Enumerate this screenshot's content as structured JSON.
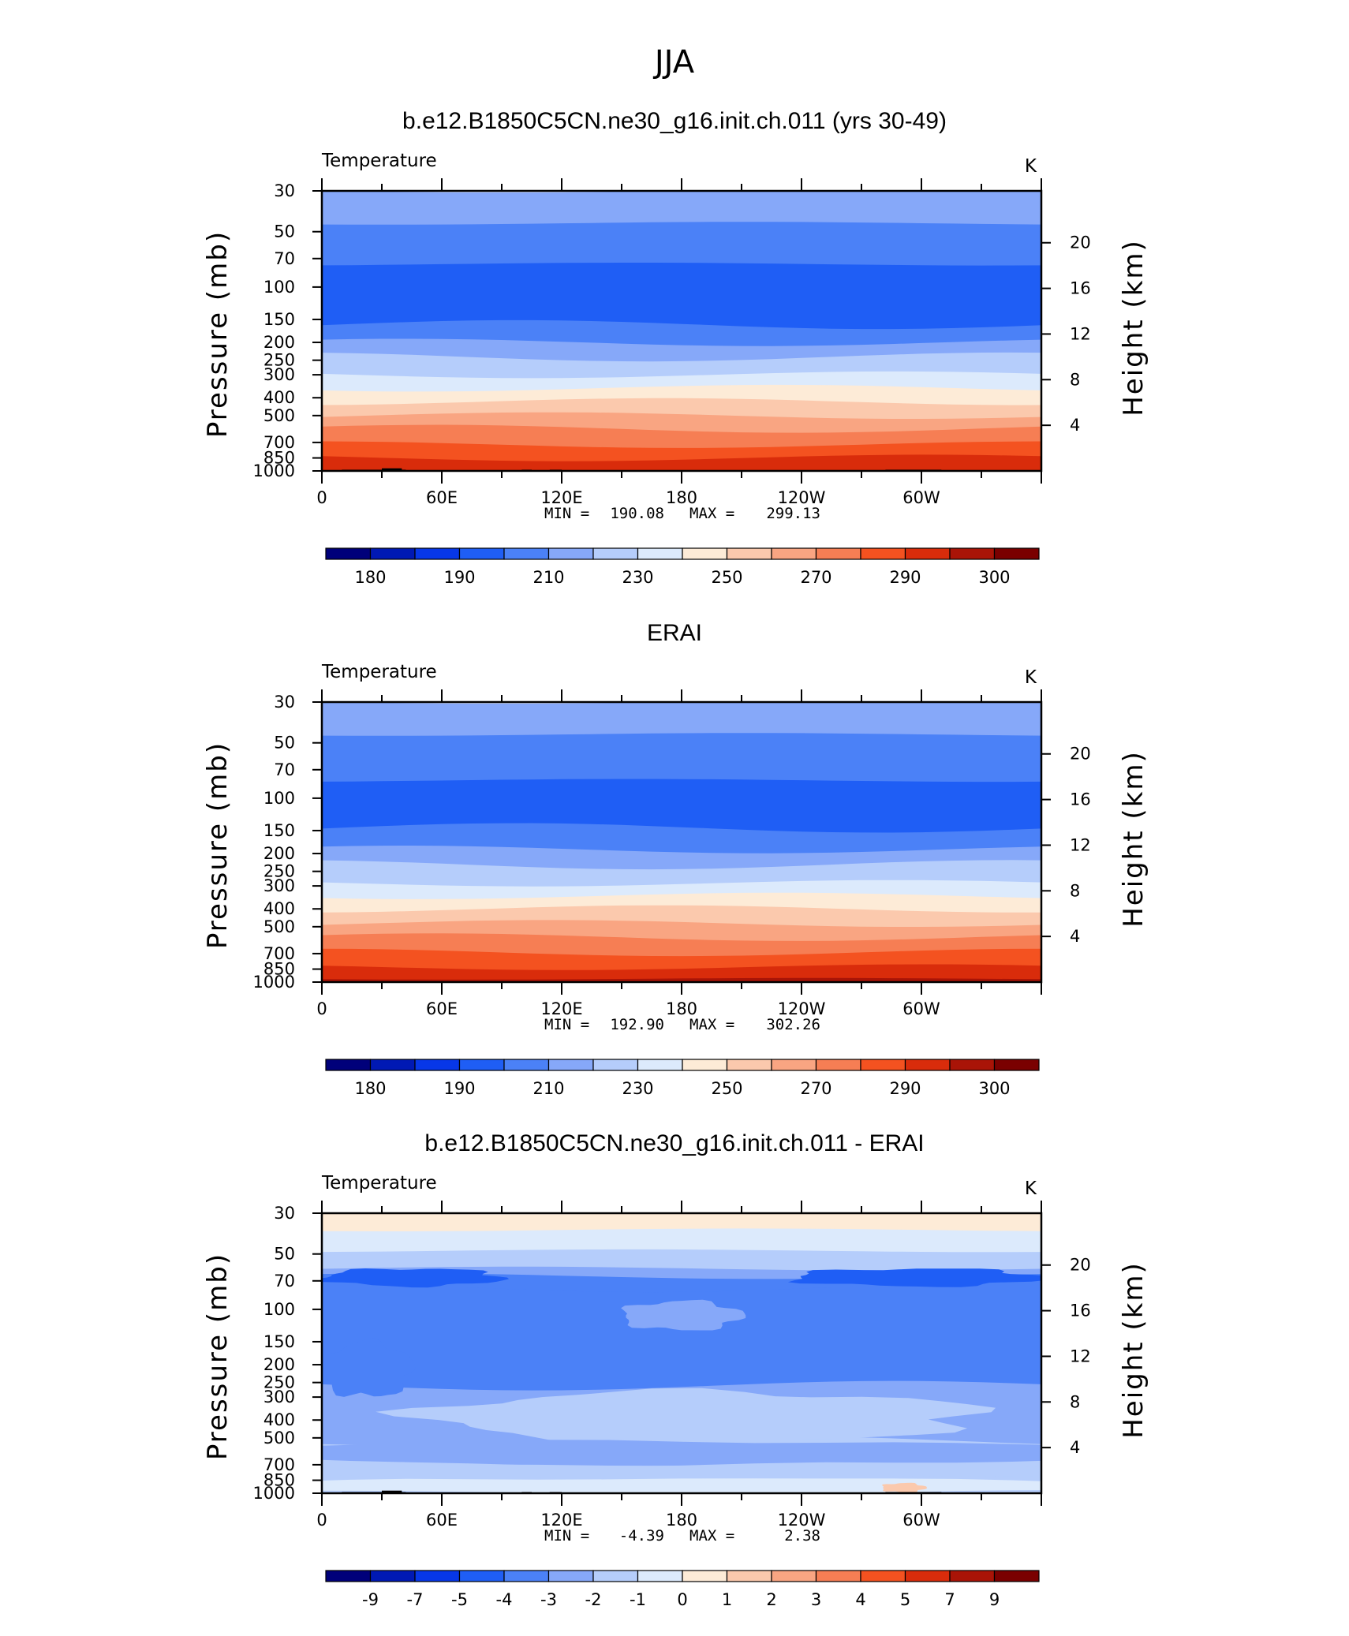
{
  "figure": {
    "title": "JJA"
  },
  "colors": {
    "palette": [
      "#00007a",
      "#0019b4",
      "#0737e8",
      "#1f5ef5",
      "#4b81f7",
      "#86a8f9",
      "#b5cdfb",
      "#dceafc",
      "#fdebd7",
      "#fbc9ad",
      "#f9a582",
      "#f67e54",
      "#f45220",
      "#d92c0b",
      "#a91407",
      "#7a0000"
    ],
    "terrain": "#000000"
  },
  "panels": [
    {
      "title": "b.e12.B1850C5CN.ne30_g16.init.ch.011 (yrs 30-49)",
      "variable": "Temperature",
      "units": "K",
      "stats": {
        "min_label": "MIN =",
        "min": "190.08",
        "max_label": "MAX =",
        "max": "299.13"
      },
      "colorbar_labels": [
        "180",
        "190",
        "210",
        "230",
        "250",
        "270",
        "290",
        "300"
      ],
      "y_left_label": "Pressure (mb)",
      "y_right_label": "Height (km)"
    },
    {
      "title": "ERAI",
      "variable": "Temperature",
      "units": "K",
      "stats": {
        "min_label": "MIN =",
        "min": "192.90",
        "max_label": "MAX =",
        "max": "302.26"
      },
      "colorbar_labels": [
        "180",
        "190",
        "210",
        "230",
        "250",
        "270",
        "290",
        "300"
      ],
      "y_left_label": "Pressure (mb)",
      "y_right_label": "Height (km)"
    },
    {
      "title": "b.e12.B1850C5CN.ne30_g16.init.ch.011 - ERAI",
      "variable": "Temperature",
      "units": "K",
      "stats": {
        "min_label": "MIN =",
        "min": "-4.39",
        "max_label": "MAX =",
        "max": "2.38"
      },
      "colorbar_labels": [
        "-9",
        "-7",
        "-5",
        "-4",
        "-3",
        "-2",
        "-1",
        "0",
        "1",
        "2",
        "3",
        "4",
        "5",
        "7",
        "9"
      ],
      "y_left_label": "Pressure (mb)",
      "y_right_label": "Height (km)"
    }
  ],
  "chart_data": [
    {
      "type": "heatmap",
      "title": "b.e12.B1850C5CN.ne30_g16.init.ch.011 (yrs 30-49)",
      "subtitle": "Temperature",
      "units": "K",
      "x_ticks": [
        "0",
        "60E",
        "120E",
        "180",
        "120W",
        "60W"
      ],
      "x_tick_lon": [
        0,
        60,
        120,
        180,
        240,
        300
      ],
      "xlim": [
        0,
        360
      ],
      "pressure_ticks": [
        "30",
        "50",
        "70",
        "100",
        "150",
        "200",
        "250",
        "300",
        "400",
        "500",
        "700",
        "850",
        "1000"
      ],
      "pressure_values": [
        30,
        50,
        70,
        100,
        150,
        200,
        250,
        300,
        400,
        500,
        700,
        850,
        1000
      ],
      "ylim": [
        30,
        1000
      ],
      "height_ticks": [
        "20",
        "16",
        "12",
        "8",
        "4"
      ],
      "height_km": [
        20,
        16,
        12,
        8,
        4
      ],
      "levels": [
        180,
        190,
        210,
        230,
        250,
        270,
        290,
        300
      ],
      "stats": {
        "min": 190.08,
        "max": 299.13
      },
      "layers": [
        {
          "p_top": 30,
          "p_bottom": 45,
          "color_index": 5
        },
        {
          "p_top": 45,
          "p_bottom": 75,
          "color_index": 4
        },
        {
          "p_top": 75,
          "p_bottom": 160,
          "color_index": 3
        },
        {
          "p_top": 160,
          "p_bottom": 200,
          "color_index": 4
        },
        {
          "p_top": 200,
          "p_bottom": 240,
          "color_index": 5
        },
        {
          "p_top": 240,
          "p_bottom": 300,
          "color_index": 6
        },
        {
          "p_top": 300,
          "p_bottom": 355,
          "color_index": 7
        },
        {
          "p_top": 355,
          "p_bottom": 420,
          "color_index": 8
        },
        {
          "p_top": 420,
          "p_bottom": 500,
          "color_index": 9
        },
        {
          "p_top": 500,
          "p_bottom": 590,
          "color_index": 10
        },
        {
          "p_top": 590,
          "p_bottom": 720,
          "color_index": 11
        },
        {
          "p_top": 720,
          "p_bottom": 850,
          "color_index": 12
        },
        {
          "p_top": 850,
          "p_bottom": 1000,
          "color_index": 13
        }
      ],
      "has_terrain": true
    },
    {
      "type": "heatmap",
      "title": "ERAI",
      "subtitle": "Temperature",
      "units": "K",
      "x_ticks": [
        "0",
        "60E",
        "120E",
        "180",
        "120W",
        "60W"
      ],
      "x_tick_lon": [
        0,
        60,
        120,
        180,
        240,
        300
      ],
      "xlim": [
        0,
        360
      ],
      "pressure_ticks": [
        "30",
        "50",
        "70",
        "100",
        "150",
        "200",
        "250",
        "300",
        "400",
        "500",
        "700",
        "850",
        "1000"
      ],
      "pressure_values": [
        30,
        50,
        70,
        100,
        150,
        200,
        250,
        300,
        400,
        500,
        700,
        850,
        1000
      ],
      "ylim": [
        30,
        1000
      ],
      "height_ticks": [
        "20",
        "16",
        "12",
        "8",
        "4"
      ],
      "height_km": [
        20,
        16,
        12,
        8,
        4
      ],
      "levels": [
        180,
        190,
        210,
        230,
        250,
        270,
        290,
        300
      ],
      "stats": {
        "min": 192.9,
        "max": 302.26
      },
      "layers": [
        {
          "p_top": 30,
          "p_bottom": 45,
          "color_index": 5
        },
        {
          "p_top": 45,
          "p_bottom": 80,
          "color_index": 4
        },
        {
          "p_top": 80,
          "p_bottom": 145,
          "color_index": 3
        },
        {
          "p_top": 145,
          "p_bottom": 190,
          "color_index": 4
        },
        {
          "p_top": 190,
          "p_bottom": 230,
          "color_index": 5
        },
        {
          "p_top": 230,
          "p_bottom": 290,
          "color_index": 6
        },
        {
          "p_top": 290,
          "p_bottom": 340,
          "color_index": 7
        },
        {
          "p_top": 340,
          "p_bottom": 400,
          "color_index": 8
        },
        {
          "p_top": 400,
          "p_bottom": 480,
          "color_index": 9
        },
        {
          "p_top": 480,
          "p_bottom": 570,
          "color_index": 10
        },
        {
          "p_top": 570,
          "p_bottom": 690,
          "color_index": 11
        },
        {
          "p_top": 690,
          "p_bottom": 830,
          "color_index": 12
        },
        {
          "p_top": 830,
          "p_bottom": 960,
          "color_index": 13
        },
        {
          "p_top": 960,
          "p_bottom": 1000,
          "color_index": 14
        }
      ],
      "has_terrain": false
    },
    {
      "type": "heatmap",
      "title": "b.e12.B1850C5CN.ne30_g16.init.ch.011 - ERAI",
      "subtitle": "Temperature",
      "units": "K",
      "x_ticks": [
        "0",
        "60E",
        "120E",
        "180",
        "120W",
        "60W"
      ],
      "x_tick_lon": [
        0,
        60,
        120,
        180,
        240,
        300
      ],
      "xlim": [
        0,
        360
      ],
      "pressure_ticks": [
        "30",
        "50",
        "70",
        "100",
        "150",
        "200",
        "250",
        "300",
        "400",
        "500",
        "700",
        "850",
        "1000"
      ],
      "pressure_values": [
        30,
        50,
        70,
        100,
        150,
        200,
        250,
        300,
        400,
        500,
        700,
        850,
        1000
      ],
      "ylim": [
        30,
        1000
      ],
      "height_ticks": [
        "20",
        "16",
        "12",
        "8",
        "4"
      ],
      "height_km": [
        20,
        16,
        12,
        8,
        4
      ],
      "levels": [
        -9,
        -7,
        -5,
        -4,
        -3,
        -2,
        -1,
        0,
        1,
        2,
        3,
        4,
        5,
        7,
        9
      ],
      "stats": {
        "min": -4.39,
        "max": 2.38
      },
      "layers": [
        {
          "p_top": 30,
          "p_bottom": 37,
          "color_index": 8
        },
        {
          "p_top": 37,
          "p_bottom": 48,
          "color_index": 7
        },
        {
          "p_top": 48,
          "p_bottom": 60,
          "color_index": 6
        },
        {
          "p_top": 60,
          "p_bottom": 66,
          "color_index": 5
        },
        {
          "p_top": 66,
          "p_bottom": 76,
          "color_index": 4
        },
        {
          "p_top": 76,
          "p_bottom": 260,
          "color_index": 4
        },
        {
          "p_top": 260,
          "p_bottom": 520,
          "color_index": 5
        },
        {
          "p_top": 520,
          "p_bottom": 1000,
          "color_index": 6
        }
      ],
      "blobs": [
        {
          "lon_range": [
            0,
            90
          ],
          "p_range": [
            60,
            75
          ],
          "color_index": 3
        },
        {
          "lon_range": [
            235,
            360
          ],
          "p_range": [
            60,
            75
          ],
          "color_index": 3
        },
        {
          "lon_range": [
            150,
            210
          ],
          "p_range": [
            90,
            130
          ],
          "color_index": 5
        },
        {
          "lon_range": [
            0,
            45
          ],
          "p_range": [
            150,
            300
          ],
          "color_index": 4
        },
        {
          "lon_range": [
            50,
            330
          ],
          "p_range": [
            280,
            520
          ],
          "color_index": 6
        },
        {
          "lon_range": [
            0,
            360
          ],
          "p_range": [
            520,
            700
          ],
          "color_index": 5
        },
        {
          "lon_range": [
            0,
            360
          ],
          "p_range": [
            700,
            830
          ],
          "color_index": 6
        },
        {
          "lon_range": [
            0,
            360
          ],
          "p_range": [
            830,
            1000
          ],
          "color_index": 7
        },
        {
          "lon_range": [
            280,
            302
          ],
          "p_range": [
            880,
            990
          ],
          "color_index": 9
        }
      ],
      "has_terrain": true
    }
  ]
}
